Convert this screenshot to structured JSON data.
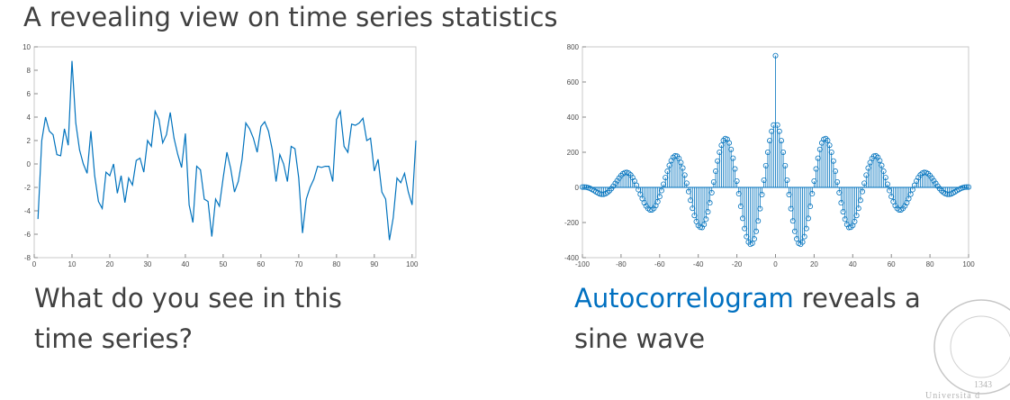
{
  "slide": {
    "title": "A revealing view on time series statistics",
    "left_caption": [
      "What do you see in this",
      "time series?"
    ],
    "right_caption": {
      "highlight": "Autocorrelogram",
      "rest": "reveals a",
      "line2": "sine wave"
    },
    "logo": {
      "year": "1343",
      "name": "Università d"
    }
  },
  "chart_data": [
    {
      "type": "line",
      "color": "#0072bd",
      "x": [
        1,
        2,
        3,
        4,
        5,
        6,
        7,
        8,
        9,
        10,
        11,
        12,
        13,
        14,
        15,
        16,
        17,
        18,
        19,
        20,
        21,
        22,
        23,
        24,
        25,
        26,
        27,
        28,
        29,
        30,
        31,
        32,
        33,
        34,
        35,
        36,
        37,
        38,
        39,
        40,
        41,
        42,
        43,
        44,
        45,
        46,
        47,
        48,
        49,
        50,
        51,
        52,
        53,
        54,
        55,
        56,
        57,
        58,
        59,
        60,
        61,
        62,
        63,
        64,
        65,
        66,
        67,
        68,
        69,
        70,
        71,
        72,
        73,
        74,
        75,
        76,
        77,
        78,
        79,
        80,
        81,
        82,
        83,
        84,
        85,
        86,
        87,
        88,
        89,
        90,
        91,
        92,
        93,
        94,
        95,
        96,
        97,
        98,
        99,
        100,
        101
      ],
      "values": [
        -4.7,
        2,
        4,
        2.8,
        2.5,
        0.8,
        0.7,
        3,
        1.6,
        8.8,
        3.5,
        1.2,
        0,
        -0.8,
        2.8,
        -1,
        -3.2,
        -3.8,
        -0.7,
        -1,
        0,
        -2.5,
        -1,
        -3.3,
        -1.2,
        -1.8,
        0.3,
        0.5,
        -0.7,
        2,
        1.5,
        4.5,
        3.8,
        1.8,
        2.5,
        4.4,
        2.2,
        0.8,
        -0.3,
        2.6,
        -3.5,
        -5,
        -0.2,
        -0.5,
        -3,
        -3.2,
        -6.2,
        -3,
        -3.6,
        -1.2,
        1,
        -0.4,
        -2.4,
        -1.5,
        0.4,
        3.5,
        3,
        2.2,
        1,
        3.2,
        3.6,
        2.8,
        1.2,
        -1.5,
        0.8,
        0,
        -1.5,
        1.5,
        1.3,
        -1.2,
        -5.9,
        -3,
        -2,
        -1.3,
        -0.2,
        -0.3,
        -0.2,
        -0.2,
        -1.5,
        3.8,
        4.5,
        1.5,
        1,
        3.4,
        3.3,
        3.5,
        3.9,
        2,
        2.2,
        -0.6,
        0.4,
        -2.4,
        -3,
        -6.5,
        -4.6,
        -1.2,
        -1.6,
        -0.8,
        -2.4,
        -3.5,
        2
      ],
      "xlim": [
        0,
        101
      ],
      "xticks": [
        0,
        10,
        20,
        30,
        40,
        50,
        60,
        70,
        80,
        90,
        100
      ],
      "ylim": [
        -8,
        10
      ],
      "yticks": [
        -8,
        -6,
        -4,
        -2,
        0,
        2,
        4,
        6,
        8,
        10
      ]
    },
    {
      "type": "stem",
      "color": "#0072bd",
      "x": [
        -100,
        -99,
        -98,
        -97,
        -96,
        -95,
        -94,
        -93,
        -92,
        -91,
        -90,
        -89,
        -88,
        -87,
        -86,
        -85,
        -84,
        -83,
        -82,
        -81,
        -80,
        -79,
        -78,
        -77,
        -76,
        -75,
        -74,
        -73,
        -72,
        -71,
        -70,
        -69,
        -68,
        -67,
        -66,
        -65,
        -64,
        -63,
        -62,
        -61,
        -60,
        -59,
        -58,
        -57,
        -56,
        -55,
        -54,
        -53,
        -52,
        -51,
        -50,
        -49,
        -48,
        -47,
        -46,
        -45,
        -44,
        -43,
        -42,
        -41,
        -40,
        -39,
        -38,
        -37,
        -36,
        -35,
        -34,
        -33,
        -32,
        -31,
        -30,
        -29,
        -28,
        -27,
        -26,
        -25,
        -24,
        -23,
        -22,
        -21,
        -20,
        -19,
        -18,
        -17,
        -16,
        -15,
        -14,
        -13,
        -12,
        -11,
        -10,
        -9,
        -8,
        -7,
        -6,
        -5,
        -4,
        -3,
        -2,
        -1,
        0,
        1,
        2,
        3,
        4,
        5,
        6,
        7,
        8,
        9,
        10,
        11,
        12,
        13,
        14,
        15,
        16,
        17,
        18,
        19,
        20,
        21,
        22,
        23,
        24,
        25,
        26,
        27,
        28,
        29,
        30,
        31,
        32,
        33,
        34,
        35,
        36,
        37,
        38,
        39,
        40,
        41,
        42,
        43,
        44,
        45,
        46,
        47,
        48,
        49,
        50,
        51,
        52,
        53,
        54,
        55,
        56,
        57,
        58,
        59,
        60,
        61,
        62,
        63,
        64,
        65,
        66,
        67,
        68,
        69,
        70,
        71,
        72,
        73,
        74,
        75,
        76,
        77,
        78,
        79,
        80,
        81,
        82,
        83,
        84,
        85,
        86,
        87,
        88,
        89,
        90,
        91,
        92,
        93,
        94,
        95,
        96,
        97,
        98,
        99,
        100
      ],
      "values": [
        2,
        2,
        1,
        -2,
        -6,
        -12,
        -18,
        -25,
        -31,
        -37,
        -39,
        -39,
        -36,
        -29,
        -19,
        -7,
        7,
        23,
        38,
        53,
        67,
        78,
        84,
        85,
        81,
        71,
        56,
        36,
        12,
        -13,
        -39,
        -64,
        -87,
        -106,
        -120,
        -128,
        -128,
        -120,
        -104,
        -81,
        -52,
        -18,
        18,
        56,
        92,
        125,
        152,
        171,
        180,
        178,
        165,
        141,
        110,
        70,
        24,
        -24,
        -73,
        -119,
        -160,
        -194,
        -217,
        -227,
        -228,
        -211,
        -181,
        -139,
        -88,
        -30,
        31,
        92,
        150,
        200,
        240,
        267,
        278,
        274,
        253,
        216,
        166,
        105,
        36,
        -36,
        -108,
        -176,
        -234,
        -280,
        -311,
        -324,
        -318,
        -293,
        -250,
        -191,
        -121,
        -41,
        41,
        124,
        200,
        266,
        319,
        355,
        750,
        355,
        319,
        266,
        200,
        124,
        41,
        -41,
        -121,
        -191,
        -250,
        -293,
        -318,
        -324,
        -311,
        -280,
        -234,
        -176,
        -108,
        -36,
        36,
        105,
        166,
        216,
        253,
        274,
        278,
        267,
        240,
        200,
        150,
        92,
        31,
        -30,
        -88,
        -139,
        -181,
        -211,
        -228,
        -227,
        -217,
        -194,
        -160,
        -119,
        -73,
        -24,
        24,
        70,
        110,
        141,
        165,
        178,
        180,
        171,
        152,
        125,
        92,
        56,
        18,
        -18,
        -52,
        -81,
        -104,
        -120,
        -128,
        -128,
        -120,
        -106,
        -87,
        -64,
        -39,
        -13,
        12,
        36,
        56,
        71,
        81,
        85,
        84,
        78,
        67,
        53,
        38,
        23,
        7,
        -7,
        -19,
        -29,
        -36,
        -39,
        -39,
        -37,
        -31,
        -25,
        -18,
        -12,
        -6,
        -2,
        1,
        2,
        2
      ],
      "xlim": [
        -100,
        100
      ],
      "xticks": [
        -100,
        -80,
        -60,
        -40,
        -20,
        0,
        20,
        40,
        60,
        80,
        100
      ],
      "ylim": [
        -400,
        800
      ],
      "yticks": [
        -400,
        -200,
        0,
        200,
        400,
        600,
        800
      ]
    }
  ]
}
